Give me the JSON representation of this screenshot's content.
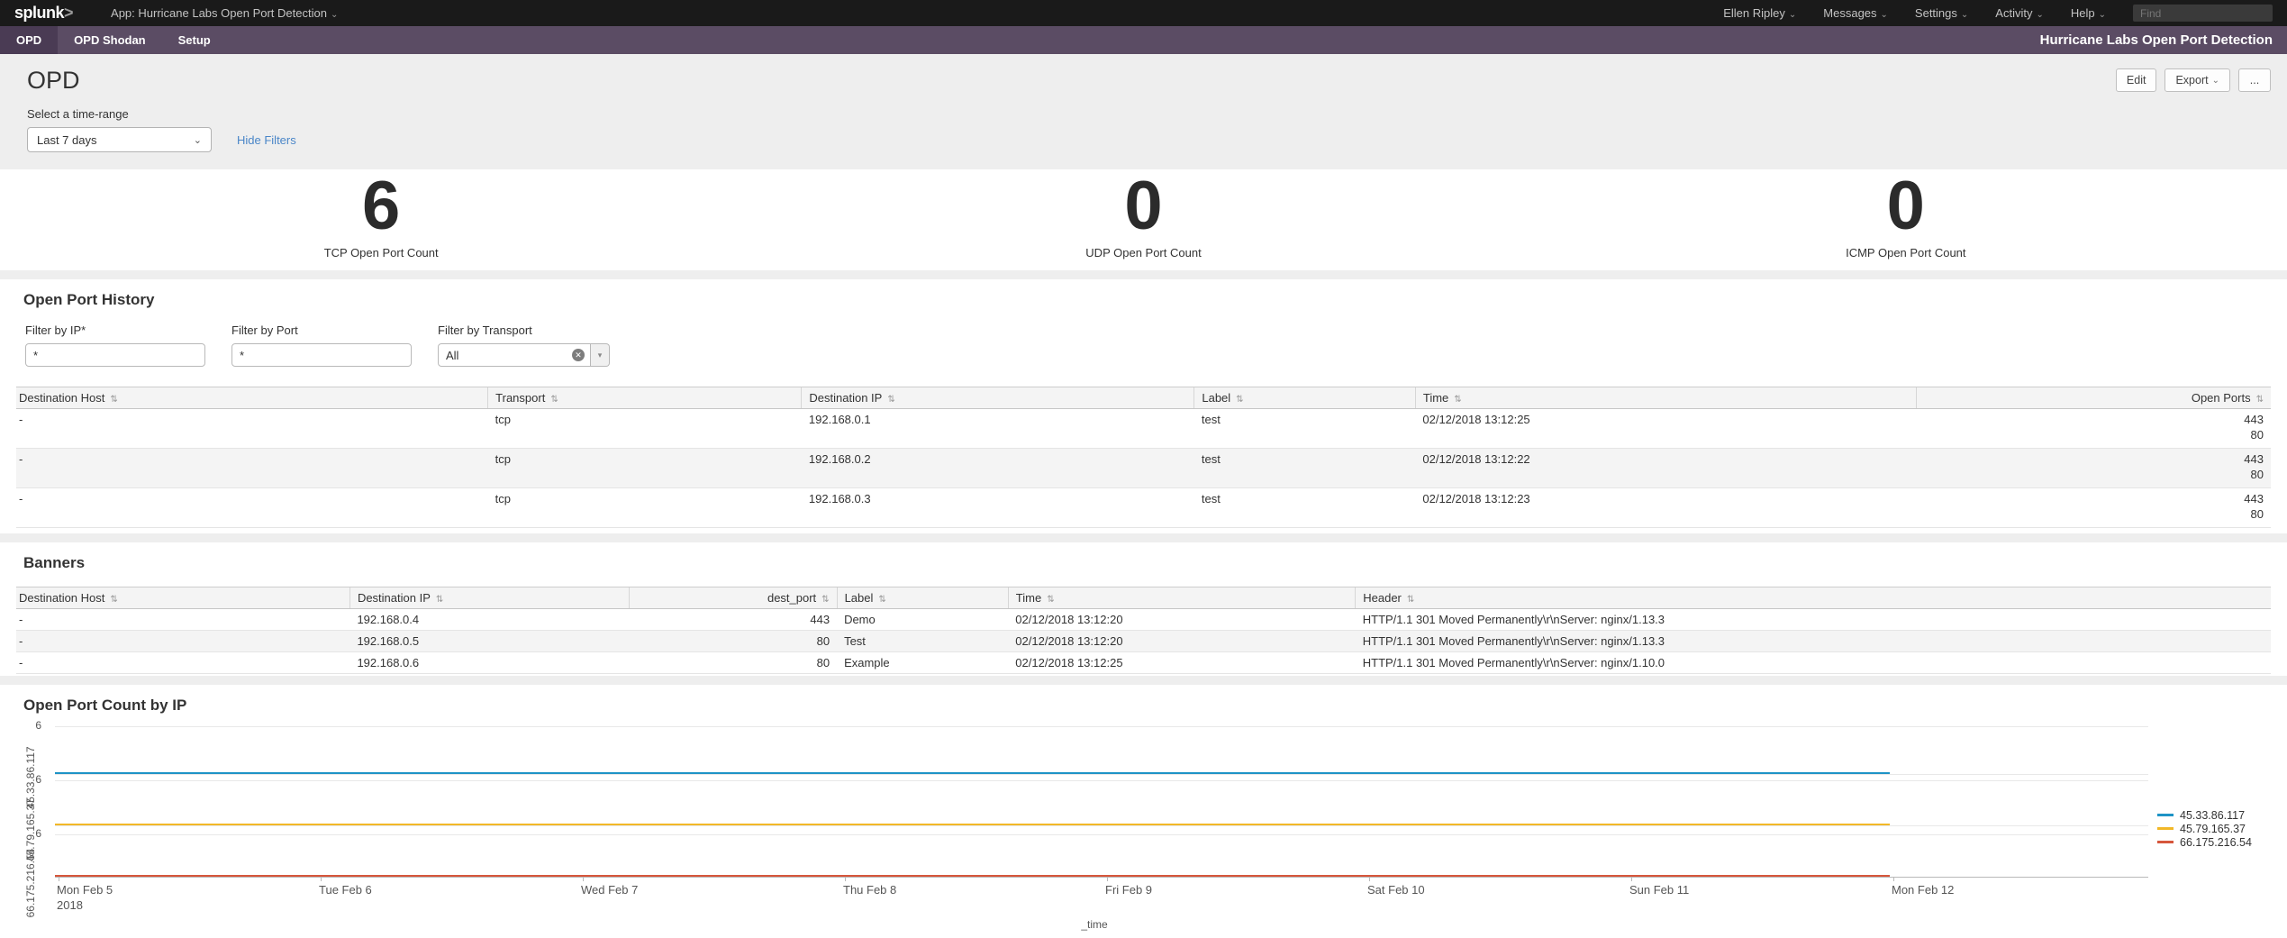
{
  "topbar": {
    "logo": "splunk",
    "logo_gt": ">",
    "app_label": "App: Hurricane Labs Open Port Detection",
    "menus": [
      "Ellen Ripley",
      "Messages",
      "Settings",
      "Activity",
      "Help"
    ],
    "find_placeholder": "Find"
  },
  "navbar": {
    "items": [
      "OPD",
      "OPD Shodan",
      "Setup"
    ],
    "active_item": "OPD",
    "app_title": "Hurricane Labs Open Port Detection"
  },
  "page": {
    "title": "OPD",
    "edit_label": "Edit",
    "export_label": "Export",
    "more_label": "...",
    "timerange_label": "Select a time-range",
    "timerange_value": "Last 7 days",
    "hide_filters_label": "Hide Filters"
  },
  "singles": [
    {
      "value": "6",
      "label": "TCP Open Port Count"
    },
    {
      "value": "0",
      "label": "UDP Open Port Count"
    },
    {
      "value": "0",
      "label": "ICMP Open Port Count"
    }
  ],
  "open_port_history": {
    "title": "Open Port History",
    "filters": [
      {
        "label": "Filter by IP*",
        "type": "text",
        "value": "*"
      },
      {
        "label": "Filter by Port",
        "type": "text",
        "value": "*"
      },
      {
        "label": "Filter by Transport",
        "type": "dropdown",
        "value": "All"
      }
    ],
    "table": {
      "headers": [
        "Destination Host",
        "Transport",
        "Destination IP",
        "Label",
        "Time",
        "Open Ports"
      ],
      "rows": [
        [
          "-",
          "tcp",
          "192.168.0.1",
          "test",
          "02/12/2018 13:12:25",
          [
            "443",
            "80"
          ]
        ],
        [
          "-",
          "tcp",
          "192.168.0.2",
          "test",
          "02/12/2018 13:12:22",
          [
            "443",
            "80"
          ]
        ],
        [
          "-",
          "tcp",
          "192.168.0.3",
          "test",
          "02/12/2018 13:12:23",
          [
            "443",
            "80"
          ]
        ]
      ]
    }
  },
  "banners": {
    "title": "Banners",
    "table": {
      "headers": [
        "Destination Host",
        "Destination IP",
        "dest_port",
        "Label",
        "Time",
        "Header"
      ],
      "rows": [
        [
          "-",
          "192.168.0.4",
          "443",
          "Demo",
          "02/12/2018 13:12:20",
          "HTTP/1.1 301 Moved Permanently\\r\\nServer: nginx/1.13.3"
        ],
        [
          "-",
          "192.168.0.5",
          "80",
          "Test",
          "02/12/2018 13:12:20",
          "HTTP/1.1 301 Moved Permanently\\r\\nServer: nginx/1.13.3"
        ],
        [
          "-",
          "192.168.0.6",
          "80",
          "Example",
          "02/12/2018 13:12:25",
          "HTTP/1.1 301 Moved Permanently\\r\\nServer: nginx/1.10.0"
        ]
      ]
    }
  },
  "chart_data": {
    "type": "line",
    "layout": "split-series",
    "title": "Open Port Count by IP",
    "xlabel": "_time",
    "x": [
      "Mon Feb 5",
      "Tue Feb 6",
      "Wed Feb 7",
      "Thu Feb 8",
      "Fri Feb 9",
      "Sat Feb 10",
      "Sun Feb 11",
      "Mon Feb 12"
    ],
    "x_year": "2018",
    "y_tick_label": "6",
    "series": [
      {
        "name": "45.33.86.117",
        "color": "#1e93c6",
        "values": [
          6,
          6,
          6,
          6,
          6,
          6,
          6,
          6
        ]
      },
      {
        "name": "45.79.165.37",
        "color": "#f2b827",
        "values": [
          6,
          6,
          6,
          6,
          6,
          6,
          6,
          6
        ]
      },
      {
        "name": "66.175.216.54",
        "color": "#d6563c",
        "values": [
          6,
          6,
          6,
          6,
          6,
          6,
          6,
          6
        ]
      }
    ],
    "legend_position": "right",
    "grid": true
  },
  "icons": {
    "caret_down": "⌄",
    "sort": "⇅",
    "dropdown_arrow": "▾",
    "clear": "✕"
  }
}
